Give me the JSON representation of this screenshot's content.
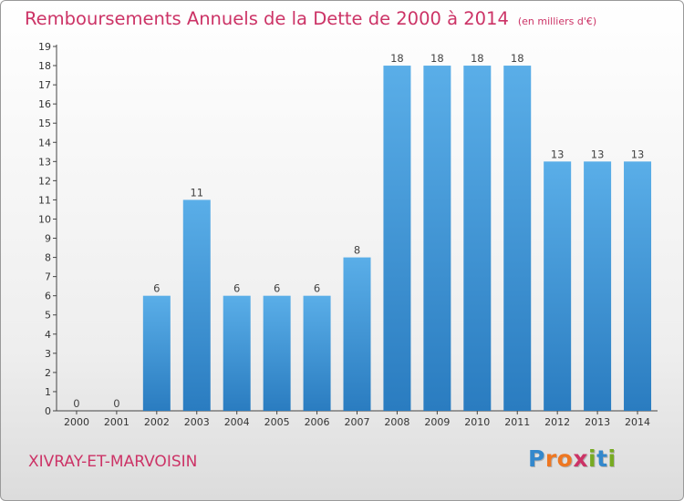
{
  "title": "Remboursements Annuels de la Dette de 2000 à 2014",
  "unit_note": "(en milliers d'€)",
  "location": "XIVRAY-ET-MARVOISIN",
  "brand": {
    "text": "Proxiti",
    "letters": [
      {
        "ch": "P",
        "color": "#3388cc"
      },
      {
        "ch": "r",
        "color": "#ee7722"
      },
      {
        "ch": "o",
        "color": "#ee7722"
      },
      {
        "ch": "x",
        "color": "#cc3366"
      },
      {
        "ch": "i",
        "color": "#77aa22"
      },
      {
        "ch": "t",
        "color": "#3388cc"
      },
      {
        "ch": "i",
        "color": "#77aa22"
      }
    ]
  },
  "colors": {
    "title": "#cc3366",
    "bar_light": "#5aaee8",
    "bar_dark": "#2a7cc0"
  },
  "chart_data": {
    "type": "bar",
    "title": "Remboursements Annuels de la Dette de 2000 à 2014",
    "categories": [
      "2000",
      "2001",
      "2002",
      "2003",
      "2004",
      "2005",
      "2006",
      "2007",
      "2008",
      "2009",
      "2010",
      "2011",
      "2012",
      "2013",
      "2014"
    ],
    "values": [
      0,
      0,
      6,
      11,
      6,
      6,
      6,
      8,
      18,
      18,
      18,
      18,
      13,
      13,
      13
    ],
    "data_labels": [
      "0",
      "0",
      "6",
      "11",
      "6",
      "6",
      "6",
      "8",
      "18",
      "18",
      "18",
      "18",
      "13",
      "13",
      "13"
    ],
    "yticks": [
      "0",
      "1",
      "2",
      "3",
      "4",
      "5",
      "6",
      "7",
      "8",
      "9",
      "10",
      "11",
      "12",
      "13",
      "14",
      "15",
      "16",
      "17",
      "18",
      "19"
    ],
    "xlabel": "",
    "ylabel": "",
    "ylim": [
      0,
      19
    ],
    "grid": false,
    "legend": "none"
  }
}
